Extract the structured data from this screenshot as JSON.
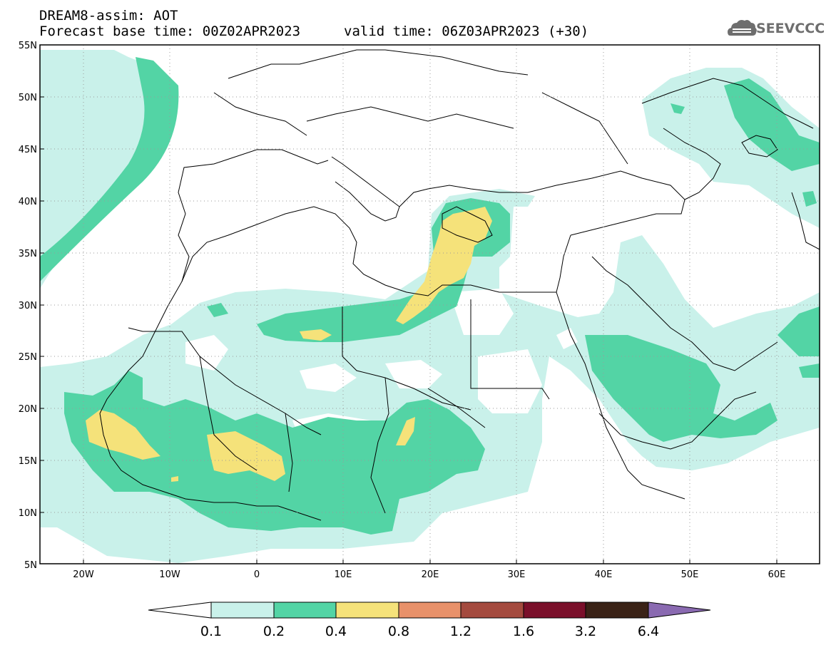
{
  "header": {
    "title": "DREAM8-assim: AOT",
    "base_time": "Forecast base time: 00Z02APR2023",
    "valid_time": "valid time: 06Z03APR2023 (+30)",
    "logo_text": "SEEVCCC",
    "logo_icon": "cloud-icon"
  },
  "map": {
    "lat_labels": [
      "55N",
      "50N",
      "45N",
      "40N",
      "35N",
      "30N",
      "25N",
      "20N",
      "15N",
      "10N",
      "5N"
    ],
    "lon_labels": [
      "20W",
      "10W",
      "0",
      "10E",
      "20E",
      "30E",
      "40E",
      "50E",
      "60E"
    ],
    "lat_range": [
      5,
      55
    ],
    "lon_range": [
      -25,
      65
    ],
    "grid": "dotted"
  },
  "colorbar": {
    "labels": [
      "0.1",
      "0.2",
      "0.4",
      "0.8",
      "1.2",
      "1.6",
      "3.2",
      "6.4"
    ],
    "colors": [
      "#ffffff",
      "#c9f1ea",
      "#53d4a5",
      "#f5e27a",
      "#e8916a",
      "#a44a3e",
      "#7a0f2a",
      "#3a2216",
      "#8a6ab1"
    ]
  },
  "palette": {
    "aot_0_1": "#c9f1ea",
    "aot_0_2": "#53d4a5",
    "aot_0_4": "#f5e27a",
    "aot_0_8": "#e8916a"
  }
}
